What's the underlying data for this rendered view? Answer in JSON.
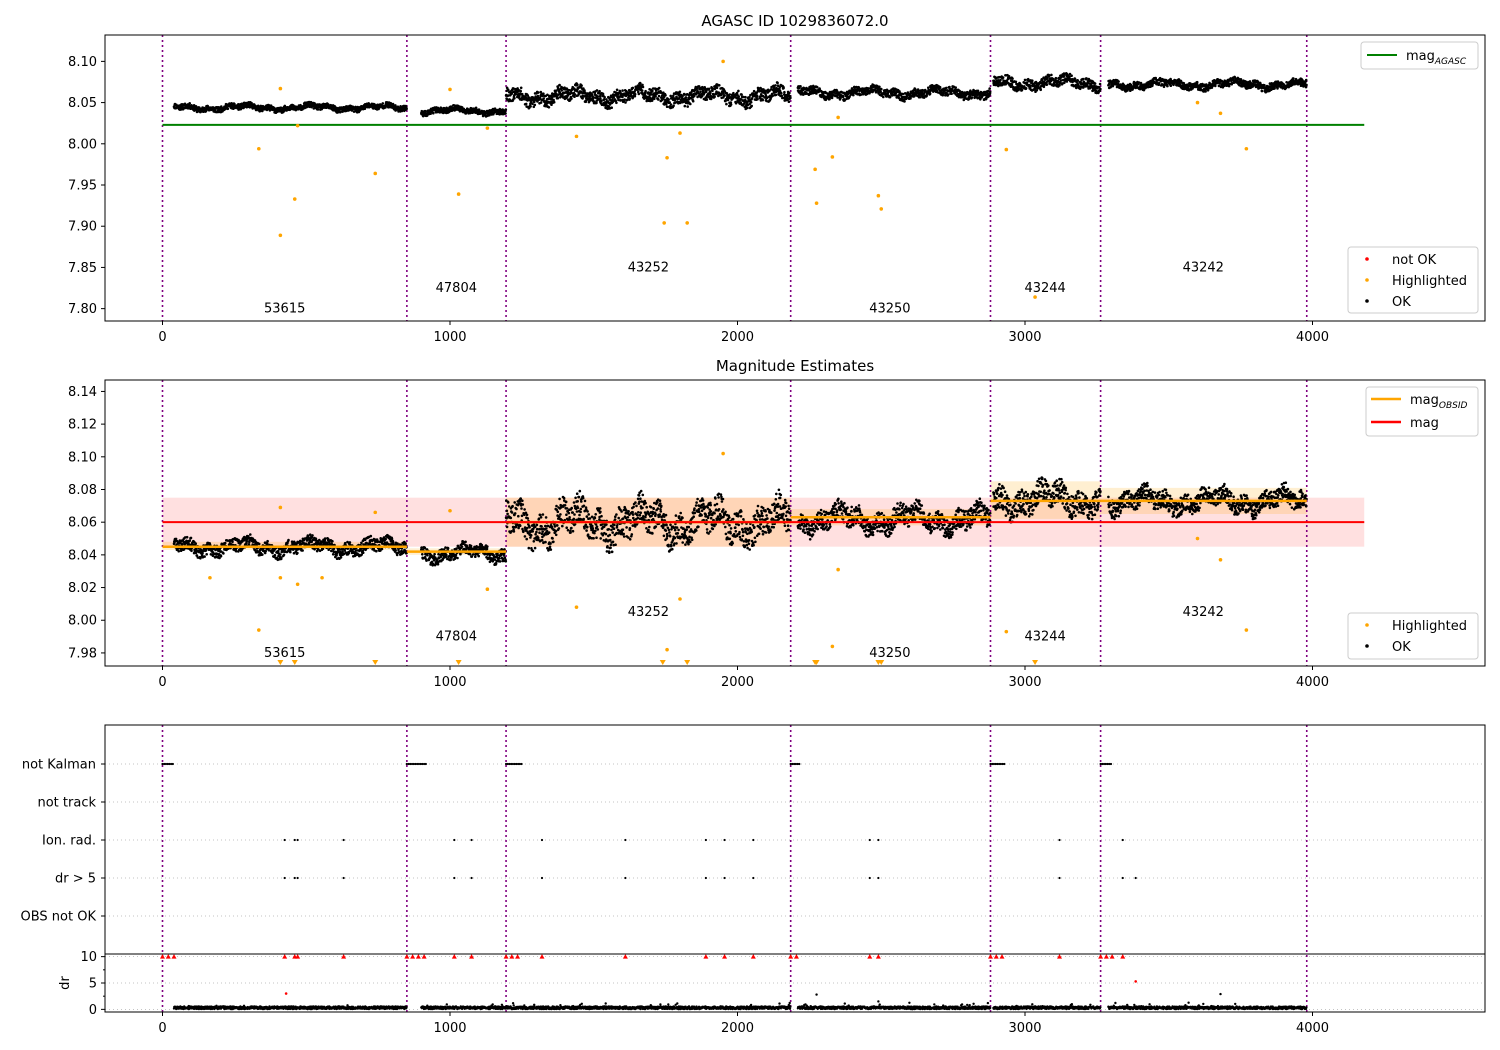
{
  "chart_data": [
    {
      "type": "scatter",
      "title": "AGASC ID 1029836072.0",
      "xlim": [
        -200,
        4600
      ],
      "ylim": [
        7.785,
        8.132
      ],
      "xticks": [
        0,
        1000,
        2000,
        3000,
        4000
      ],
      "xtick_labels": [
        "0",
        "1000",
        "2000",
        "3000",
        "4000"
      ],
      "yticks": [
        7.8,
        7.85,
        7.9,
        7.95,
        8.0,
        8.05,
        8.1
      ],
      "ytick_labels": [
        "7.80",
        "7.85",
        "7.90",
        "7.95",
        "8.00",
        "8.05",
        "8.10"
      ],
      "obs_boundaries": [
        0,
        850,
        1195,
        2185,
        2880,
        3263,
        3980
      ],
      "obs_labels": [
        {
          "text": "53615",
          "x": 425,
          "y": 7.8
        },
        {
          "text": "47804",
          "x": 1022,
          "y": 7.825
        },
        {
          "text": "43252",
          "x": 1690,
          "y": 7.85
        },
        {
          "text": "43250",
          "x": 2530,
          "y": 7.8
        },
        {
          "text": "43244",
          "x": 3070,
          "y": 7.825
        },
        {
          "text": "43242",
          "x": 3620,
          "y": 7.85
        }
      ],
      "mag_agasc": {
        "value": 8.023,
        "x_range": [
          0,
          4180
        ],
        "color": "#008000"
      },
      "ok_segments": [
        {
          "x0": 40,
          "x1": 850,
          "level": 8.044,
          "amp": 0.006
        },
        {
          "x0": 900,
          "x1": 1195,
          "level": 8.04,
          "amp": 0.006
        },
        {
          "x0": 1195,
          "x1": 2185,
          "level": 8.058,
          "amp": 0.014
        },
        {
          "x0": 2210,
          "x1": 2880,
          "level": 8.062,
          "amp": 0.009
        },
        {
          "x0": 2890,
          "x1": 3263,
          "level": 8.074,
          "amp": 0.011
        },
        {
          "x0": 3290,
          "x1": 3980,
          "level": 8.072,
          "amp": 0.008
        }
      ],
      "highlighted": [
        {
          "x": 335,
          "y": 7.994
        },
        {
          "x": 410,
          "y": 7.889
        },
        {
          "x": 460,
          "y": 7.933
        },
        {
          "x": 740,
          "y": 7.964
        },
        {
          "x": 410,
          "y": 8.067
        },
        {
          "x": 470,
          "y": 8.022
        },
        {
          "x": 1030,
          "y": 7.939
        },
        {
          "x": 1130,
          "y": 8.019
        },
        {
          "x": 1000,
          "y": 8.066
        },
        {
          "x": 1440,
          "y": 8.009
        },
        {
          "x": 1745,
          "y": 7.904
        },
        {
          "x": 1755,
          "y": 7.983
        },
        {
          "x": 1825,
          "y": 7.904
        },
        {
          "x": 1800,
          "y": 8.013
        },
        {
          "x": 2270,
          "y": 7.969
        },
        {
          "x": 2275,
          "y": 7.928
        },
        {
          "x": 2330,
          "y": 7.984
        },
        {
          "x": 2350,
          "y": 8.032
        },
        {
          "x": 2490,
          "y": 7.937
        },
        {
          "x": 2500,
          "y": 7.921
        },
        {
          "x": 2935,
          "y": 7.993
        },
        {
          "x": 3035,
          "y": 7.814
        },
        {
          "x": 3600,
          "y": 8.05
        },
        {
          "x": 3680,
          "y": 8.037
        },
        {
          "x": 3770,
          "y": 7.994
        },
        {
          "x": 1950,
          "y": 8.1
        }
      ],
      "legend_lines": [
        {
          "label": "mag",
          "subscript": "AGASC",
          "color": "#008000"
        }
      ],
      "legend_lines_loc": "upper right",
      "legend_points": [
        {
          "label": "not OK",
          "color": "#ff0000"
        },
        {
          "label": "Highlighted",
          "color": "#ffa500"
        },
        {
          "label": "OK",
          "color": "#000000"
        }
      ],
      "legend_points_loc": "lower right"
    },
    {
      "type": "scatter",
      "title": "Magnitude Estimates",
      "xlim": [
        -200,
        4600
      ],
      "ylim": [
        7.972,
        8.147
      ],
      "xticks": [
        0,
        1000,
        2000,
        3000,
        4000
      ],
      "xtick_labels": [
        "0",
        "1000",
        "2000",
        "3000",
        "4000"
      ],
      "yticks": [
        7.98,
        8.0,
        8.02,
        8.04,
        8.06,
        8.08,
        8.1,
        8.12,
        8.14
      ],
      "ytick_labels": [
        "7.98",
        "8.00",
        "8.02",
        "8.04",
        "8.06",
        "8.08",
        "8.10",
        "8.12",
        "8.14"
      ],
      "obs_boundaries": [
        0,
        850,
        1195,
        2185,
        2880,
        3263,
        3980
      ],
      "obs_labels": [
        {
          "text": "53615",
          "x": 425,
          "y": 7.98
        },
        {
          "text": "47804",
          "x": 1022,
          "y": 7.99
        },
        {
          "text": "43252",
          "x": 1690,
          "y": 8.005
        },
        {
          "text": "43250",
          "x": 2530,
          "y": 7.98
        },
        {
          "text": "43244",
          "x": 3070,
          "y": 7.99
        },
        {
          "text": "43242",
          "x": 3620,
          "y": 8.005
        }
      ],
      "mag": {
        "value": 8.06,
        "band": [
          8.045,
          8.075
        ],
        "x_range": [
          0,
          4180
        ],
        "color": "#ff0000"
      },
      "mag_obsid": [
        {
          "x0": 0,
          "x1": 850,
          "value": 8.045,
          "band": [
            8.043,
            8.048
          ]
        },
        {
          "x0": 850,
          "x1": 1195,
          "value": 8.042,
          "band": [
            8.04,
            8.044
          ]
        },
        {
          "x0": 1195,
          "x1": 2185,
          "value": 8.06,
          "band": [
            8.045,
            8.075
          ]
        },
        {
          "x0": 2185,
          "x1": 2880,
          "value": 8.063,
          "band": [
            8.058,
            8.068
          ]
        },
        {
          "x0": 2880,
          "x1": 3263,
          "value": 8.073,
          "band": [
            8.062,
            8.085
          ]
        },
        {
          "x0": 3263,
          "x1": 3980,
          "value": 8.073,
          "band": [
            8.065,
            8.081
          ]
        }
      ],
      "ok_segments": [
        {
          "x0": 40,
          "x1": 850,
          "level": 8.045,
          "amp": 0.007
        },
        {
          "x0": 900,
          "x1": 1195,
          "level": 8.041,
          "amp": 0.007
        },
        {
          "x0": 1195,
          "x1": 2185,
          "level": 8.06,
          "amp": 0.017
        },
        {
          "x0": 2210,
          "x1": 2880,
          "level": 8.062,
          "amp": 0.011
        },
        {
          "x0": 2890,
          "x1": 3263,
          "level": 8.074,
          "amp": 0.013
        },
        {
          "x0": 3290,
          "x1": 3980,
          "level": 8.073,
          "amp": 0.01
        }
      ],
      "highlighted": [
        {
          "x": 335,
          "y": 7.994
        },
        {
          "x": 410,
          "y": 8.069
        },
        {
          "x": 165,
          "y": 8.026
        },
        {
          "x": 410,
          "y": 8.026
        },
        {
          "x": 470,
          "y": 8.022
        },
        {
          "x": 555,
          "y": 8.026
        },
        {
          "x": 740,
          "y": 8.066
        },
        {
          "x": 1000,
          "y": 8.067
        },
        {
          "x": 1130,
          "y": 8.019
        },
        {
          "x": 1440,
          "y": 8.008
        },
        {
          "x": 1755,
          "y": 7.982
        },
        {
          "x": 1800,
          "y": 8.013
        },
        {
          "x": 2330,
          "y": 7.984
        },
        {
          "x": 2350,
          "y": 8.031
        },
        {
          "x": 2935,
          "y": 7.993
        },
        {
          "x": 3600,
          "y": 8.05
        },
        {
          "x": 3680,
          "y": 8.037
        },
        {
          "x": 3770,
          "y": 7.994
        },
        {
          "x": 1950,
          "y": 8.102
        }
      ],
      "offscale_x": [
        410,
        460,
        740,
        1030,
        1740,
        1825,
        2270,
        2275,
        2490,
        2500,
        3035
      ],
      "legend_lines": [
        {
          "label": "mag",
          "subscript": "OBSID",
          "color": "#ffa500"
        },
        {
          "label": "mag",
          "subscript": "",
          "color": "#ff0000"
        }
      ],
      "legend_lines_loc": "upper right",
      "legend_points": [
        {
          "label": "Highlighted",
          "color": "#ffa500"
        },
        {
          "label": "OK",
          "color": "#000000"
        }
      ],
      "legend_points_loc": "lower right"
    },
    {
      "type": "scatter",
      "xlim": [
        -200,
        4600
      ],
      "flag_rows": [
        "not Kalman",
        "not track",
        "Ion. rad.",
        "dr > 5",
        "OBS not OK"
      ],
      "obs_boundaries": [
        0,
        850,
        1195,
        2185,
        2880,
        3263,
        3980
      ],
      "not_kalman_runs": [
        [
          0,
          40
        ],
        [
          850,
          920
        ],
        [
          1195,
          1250
        ],
        [
          2185,
          2220
        ],
        [
          2880,
          2930
        ],
        [
          3263,
          3300
        ]
      ],
      "ion_rad_x": [
        425,
        460,
        470,
        630,
        1015,
        1075,
        1320,
        1610,
        1890,
        1955,
        2055,
        2460,
        2490,
        3120,
        3340
      ],
      "dr_gt5_x": [
        425,
        460,
        470,
        630,
        1015,
        1075,
        1320,
        1610,
        1890,
        1955,
        2055,
        2460,
        2490,
        3120,
        3340,
        3385
      ],
      "dr_ylabel": "dr",
      "dr_ylim": [
        -0.5,
        10.5
      ],
      "dr_yticks": [
        0,
        5,
        10
      ],
      "dr_ytick_labels": [
        "0",
        "5",
        "10"
      ],
      "dr_level": 0.3,
      "dr_clipped_x": [
        0,
        20,
        40,
        850,
        870,
        890,
        910,
        1195,
        1215,
        1235,
        2185,
        2205,
        2880,
        2900,
        2920,
        3263,
        3283,
        3303,
        425,
        460,
        470,
        630,
        1015,
        1075,
        1320,
        1610,
        1890,
        1955,
        2055,
        2460,
        2490,
        3120,
        3340
      ],
      "dr_red_points": [
        {
          "x": 430,
          "y": 3.0
        },
        {
          "x": 3385,
          "y": 5.3
        }
      ],
      "dr_black_extra": [
        {
          "x": 2275,
          "y": 2.8
        },
        {
          "x": 3680,
          "y": 2.9
        },
        {
          "x": 2490,
          "y": 1.5
        }
      ],
      "xticks": [
        0,
        1000,
        2000,
        3000,
        4000
      ],
      "xtick_labels": [
        "0",
        "1000",
        "2000",
        "3000",
        "4000"
      ]
    }
  ]
}
